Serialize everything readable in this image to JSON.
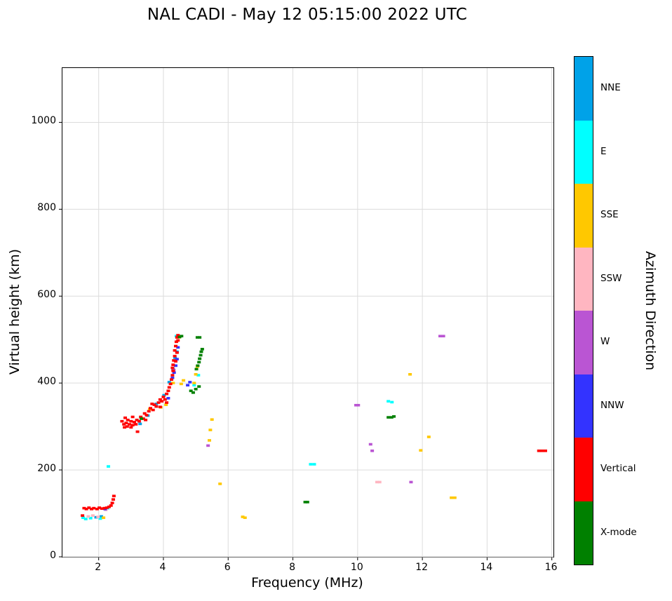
{
  "chart_data": {
    "type": "scatter",
    "title": "NAL CADI - May 12 05:15:00 2022 UTC",
    "xlabel": "Frequency (MHz)",
    "ylabel": "Virtual height (km)",
    "xlim": [
      0.88,
      16.05
    ],
    "ylim": [
      0,
      1125
    ],
    "x_ticks": [
      2,
      4,
      6,
      8,
      10,
      12,
      14,
      16
    ],
    "y_ticks": [
      0,
      200,
      400,
      600,
      800,
      1000
    ],
    "grid": true,
    "grid_color": "#dcdcdc",
    "legend_position": "right-colorbar",
    "series": [
      {
        "name": "NNE",
        "color": "#00A2E8",
        "points": [
          [
            3.28,
            306
          ],
          [
            3.52,
            325
          ],
          [
            3.78,
            352
          ],
          [
            4.02,
            372
          ],
          [
            4.18,
            402
          ],
          [
            4.3,
            432
          ],
          [
            4.36,
            458
          ],
          [
            4.42,
            472
          ],
          [
            1.92,
            91
          ],
          [
            2.08,
            93
          ]
        ]
      },
      {
        "name": "E",
        "color": "#00FFFF",
        "points": [
          [
            1.52,
            90
          ],
          [
            1.6,
            87
          ],
          [
            1.75,
            89
          ],
          [
            2.05,
            88
          ],
          [
            2.3,
            208
          ],
          [
            2.28,
            112
          ],
          [
            8.55,
            213
          ],
          [
            8.66,
            213
          ],
          [
            4.4,
            508
          ],
          [
            4.95,
            395
          ],
          [
            10.95,
            358
          ],
          [
            11.06,
            356
          ],
          [
            5.08,
            418
          ]
        ]
      },
      {
        "name": "SSE",
        "color": "#FFC800",
        "points": [
          [
            3.58,
            340
          ],
          [
            3.92,
            344
          ],
          [
            4.08,
            350
          ],
          [
            4.3,
            400
          ],
          [
            4.55,
            398
          ],
          [
            4.62,
            406
          ],
          [
            4.95,
            400
          ],
          [
            5.0,
            420
          ],
          [
            5.05,
            438
          ],
          [
            4.48,
            505
          ],
          [
            5.42,
            268
          ],
          [
            5.45,
            292
          ],
          [
            5.5,
            316
          ],
          [
            5.75,
            168
          ],
          [
            6.45,
            92
          ],
          [
            6.52,
            90
          ],
          [
            11.62,
            420
          ],
          [
            11.95,
            245
          ],
          [
            12.2,
            276
          ],
          [
            12.9,
            136
          ],
          [
            13.0,
            136
          ],
          [
            2.15,
            90
          ]
        ]
      },
      {
        "name": "SSW",
        "color": "#FFB6C1",
        "points": [
          [
            1.68,
            93
          ],
          [
            1.82,
            95
          ],
          [
            1.98,
            92
          ],
          [
            2.22,
            108
          ],
          [
            10.6,
            172
          ],
          [
            10.68,
            172
          ]
        ]
      },
      {
        "name": "W",
        "color": "#BA55D3",
        "points": [
          [
            5.38,
            256
          ],
          [
            9.95,
            349
          ],
          [
            10.02,
            349
          ],
          [
            10.4,
            259
          ],
          [
            10.45,
            244
          ],
          [
            11.65,
            172
          ],
          [
            12.55,
            508
          ],
          [
            12.65,
            508
          ],
          [
            4.32,
            430
          ]
        ]
      },
      {
        "name": "NNW",
        "color": "#3333FF",
        "points": [
          [
            4.28,
            412
          ],
          [
            4.33,
            424
          ],
          [
            4.38,
            440
          ],
          [
            4.42,
            455
          ],
          [
            4.15,
            365
          ],
          [
            4.75,
            395
          ],
          [
            4.82,
            402
          ],
          [
            2.2,
            110
          ],
          [
            4.45,
            482
          ]
        ]
      },
      {
        "name": "Vertical",
        "color": "#FF0000",
        "points": [
          [
            1.5,
            95
          ],
          [
            1.55,
            112
          ],
          [
            1.62,
            110
          ],
          [
            1.7,
            113
          ],
          [
            1.78,
            110
          ],
          [
            1.85,
            112
          ],
          [
            1.95,
            110
          ],
          [
            2.02,
            113
          ],
          [
            2.1,
            111
          ],
          [
            2.18,
            112
          ],
          [
            2.25,
            113
          ],
          [
            2.32,
            115
          ],
          [
            2.38,
            118
          ],
          [
            2.42,
            124
          ],
          [
            2.45,
            132
          ],
          [
            2.47,
            140
          ],
          [
            2.72,
            312
          ],
          [
            2.78,
            305
          ],
          [
            2.8,
            298
          ],
          [
            2.85,
            308
          ],
          [
            2.88,
            300
          ],
          [
            2.9,
            315
          ],
          [
            2.95,
            305
          ],
          [
            3.0,
            298
          ],
          [
            3.0,
            312
          ],
          [
            3.05,
            303
          ],
          [
            3.1,
            310
          ],
          [
            3.15,
            305
          ],
          [
            3.2,
            288
          ],
          [
            3.05,
            322
          ],
          [
            2.82,
            320
          ],
          [
            3.18,
            315
          ],
          [
            3.25,
            312
          ],
          [
            3.3,
            322
          ],
          [
            3.38,
            318
          ],
          [
            3.42,
            330
          ],
          [
            3.48,
            326
          ],
          [
            3.55,
            335
          ],
          [
            3.6,
            342
          ],
          [
            3.68,
            338
          ],
          [
            3.72,
            350
          ],
          [
            3.78,
            346
          ],
          [
            3.85,
            355
          ],
          [
            3.9,
            362
          ],
          [
            3.95,
            358
          ],
          [
            4.0,
            368
          ],
          [
            4.05,
            362
          ],
          [
            4.1,
            375
          ],
          [
            4.15,
            382
          ],
          [
            4.18,
            390
          ],
          [
            4.22,
            398
          ],
          [
            4.1,
            355
          ],
          [
            3.9,
            345
          ],
          [
            3.65,
            352
          ],
          [
            3.45,
            315
          ],
          [
            4.25,
            408
          ],
          [
            4.28,
            418
          ],
          [
            4.3,
            428
          ],
          [
            4.3,
            442
          ],
          [
            4.32,
            452
          ],
          [
            4.35,
            462
          ],
          [
            4.35,
            475
          ],
          [
            4.38,
            485
          ],
          [
            4.4,
            495
          ],
          [
            4.42,
            505
          ],
          [
            4.45,
            498
          ],
          [
            4.45,
            510
          ],
          [
            4.38,
            450
          ],
          [
            4.42,
            470
          ],
          [
            4.28,
            435
          ],
          [
            15.6,
            244
          ],
          [
            15.7,
            244
          ],
          [
            15.8,
            244
          ]
        ]
      },
      {
        "name": "X-mode",
        "color": "#008000",
        "points": [
          [
            3.32,
            318
          ],
          [
            4.5,
            506
          ],
          [
            4.56,
            508
          ],
          [
            5.05,
            505
          ],
          [
            5.12,
            505
          ],
          [
            4.85,
            382
          ],
          [
            4.92,
            378
          ],
          [
            5.0,
            386
          ],
          [
            5.02,
            432
          ],
          [
            5.06,
            440
          ],
          [
            5.1,
            448
          ],
          [
            5.12,
            456
          ],
          [
            5.15,
            464
          ],
          [
            5.17,
            472
          ],
          [
            5.2,
            478
          ],
          [
            8.38,
            126
          ],
          [
            8.45,
            126
          ],
          [
            10.95,
            321
          ],
          [
            11.05,
            321
          ],
          [
            11.12,
            323
          ],
          [
            5.1,
            392
          ]
        ]
      }
    ]
  },
  "colorbar": {
    "title": "Azimuth Direction",
    "entries": [
      {
        "label": "NNE",
        "color": "#00A2E8"
      },
      {
        "label": "E",
        "color": "#00FFFF"
      },
      {
        "label": "SSE",
        "color": "#FFC800"
      },
      {
        "label": "SSW",
        "color": "#FFB6C1"
      },
      {
        "label": "W",
        "color": "#BA55D3"
      },
      {
        "label": "NNW",
        "color": "#3333FF"
      },
      {
        "label": "Vertical",
        "color": "#FF0000"
      },
      {
        "label": "X-mode",
        "color": "#008000"
      }
    ]
  }
}
